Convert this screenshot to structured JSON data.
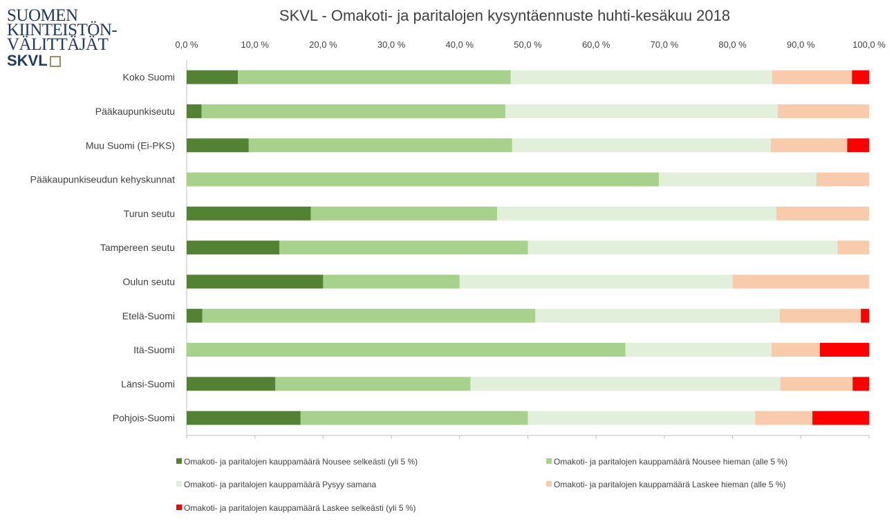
{
  "logo": {
    "lines": [
      "SUOMEN",
      "KIINTEISTÖN-",
      "VÄLITTÄJÄT"
    ],
    "brand": "SKVL"
  },
  "chart_data": {
    "type": "bar",
    "orientation": "horizontal",
    "stacked": true,
    "title": "SKVL - Omakoti- ja paritalojen kysyntäennuste huhti-kesäkuu 2018",
    "xlim": [
      0,
      100
    ],
    "xticks": [
      "0,0 %",
      "10,0 %",
      "20,0 %",
      "30,0 %",
      "40,0 %",
      "50,0 %",
      "60,0 %",
      "70,0 %",
      "80,0 %",
      "90,0 %",
      "100,0 %"
    ],
    "categories": [
      "Koko Suomi",
      "Pääkaupunkiseutu",
      "Muu Suomi (Ei-PKS)",
      "Pääkaupunkiseudun kehyskunnat",
      "Turun seutu",
      "Tampereen seutu",
      "Oulun seutu",
      "Etelä-Suomi",
      "Itä-Suomi",
      "Länsi-Suomi",
      "Pohjois-Suomi"
    ],
    "series": [
      {
        "name": "Omakoti- ja paritalojen kauppamäärä Nousee selkeästi (yli 5 %)",
        "color": "#548235",
        "values": [
          7.5,
          2.2,
          9.1,
          0,
          18.2,
          13.6,
          20.0,
          2.3,
          0,
          13.0,
          16.7
        ]
      },
      {
        "name": "Omakoti- ja paritalojen kauppamäärä Nousee hieman (alle 5 %)",
        "color": "#a9d18e",
        "values": [
          40.0,
          44.5,
          38.6,
          69.2,
          27.3,
          36.4,
          20.0,
          48.8,
          64.3,
          28.6,
          33.3
        ]
      },
      {
        "name": "Omakoti- ja paritalojen kauppamäärä Pysyy samana",
        "color": "#e2efda",
        "values": [
          38.3,
          39.9,
          37.9,
          23.1,
          40.9,
          45.4,
          40.0,
          35.8,
          21.4,
          45.4,
          33.3
        ]
      },
      {
        "name": "Omakoti- ja paritalojen kauppamäärä Laskee hieman (alle 5 %)",
        "color": "#f8cbad",
        "values": [
          11.7,
          13.4,
          11.2,
          7.7,
          13.6,
          4.6,
          20.0,
          11.9,
          7.1,
          10.6,
          8.4
        ]
      },
      {
        "name": "Omakoti- ja paritalojen kauppamäärä Laskee selkeästi (yli 5 %)",
        "color": "#ff0000",
        "values": [
          2.5,
          0,
          3.2,
          0,
          0,
          0,
          0,
          1.2,
          7.2,
          2.4,
          8.3
        ]
      }
    ]
  }
}
